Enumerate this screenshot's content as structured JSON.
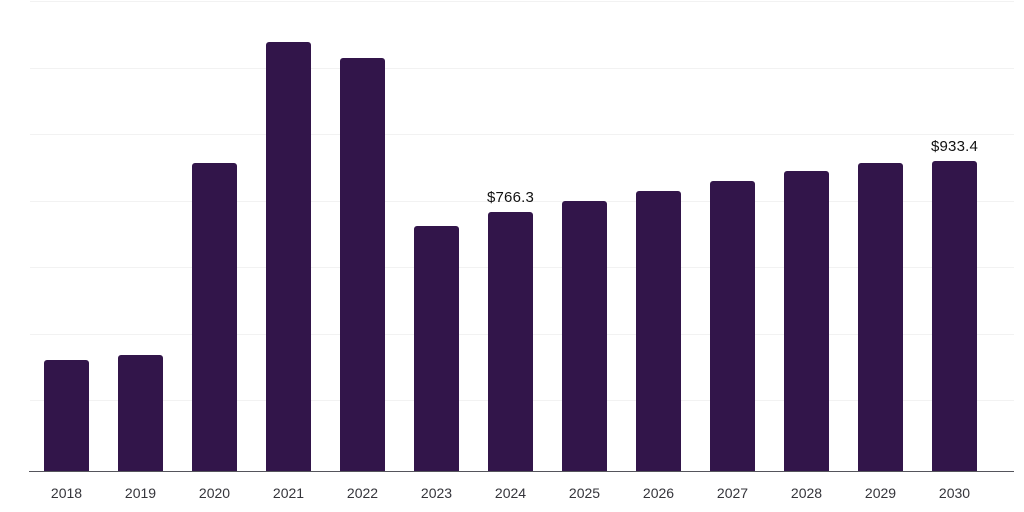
{
  "chart_data": {
    "type": "bar",
    "title": "",
    "xlabel": "",
    "ylabel": "",
    "categories": [
      "2018",
      "2019",
      "2020",
      "2021",
      "2022",
      "2023",
      "2024",
      "2025",
      "2026",
      "2027",
      "2028",
      "2029",
      "2030"
    ],
    "values": [
      284,
      301,
      926,
      1319,
      1268,
      722,
      766.3,
      804,
      836,
      868,
      900,
      925,
      933.4
    ],
    "data_labels": [
      "",
      "",
      "",
      "",
      "",
      "",
      "$766.3",
      "",
      "",
      "",
      "",
      "",
      "$933.4"
    ],
    "currency_prefix": "$",
    "ylim": [
      -76,
      1456
    ],
    "grid": "horizontal-faint",
    "legend": "none",
    "colors": {
      "bar": "#32154a",
      "gridline": "#f2f2f2",
      "axis_line": "#55555c",
      "tick_label": "#35353b",
      "data_label": "#111111",
      "background": "#ffffff"
    }
  }
}
